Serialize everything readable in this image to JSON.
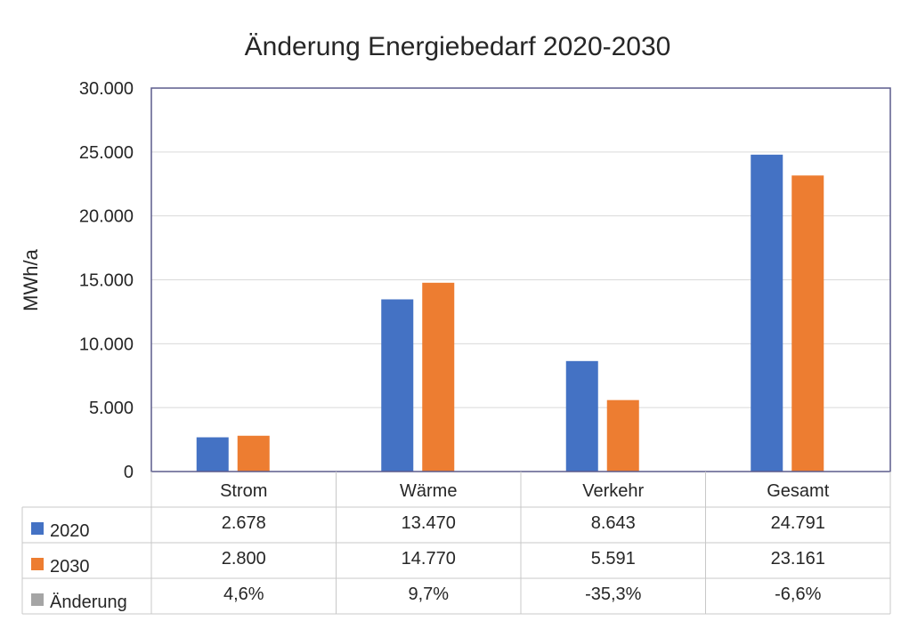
{
  "chart_data": {
    "type": "bar",
    "title": "Änderung Energiebedarf 2020-2030",
    "ylabel": "MWh/a",
    "xlabel": "",
    "ylim": [
      0,
      30000
    ],
    "yticks": [
      0,
      5000,
      10000,
      15000,
      20000,
      25000,
      30000
    ],
    "ytick_labels": [
      "0",
      "5.000",
      "10.000",
      "15.000",
      "20.000",
      "25.000",
      "30.000"
    ],
    "grid": true,
    "legend": "data-table-below",
    "categories": [
      "Strom",
      "Wärme",
      "Verkehr",
      "Gesamt"
    ],
    "series": [
      {
        "name": "2020",
        "color": "#4472C4",
        "values": [
          2678,
          13470,
          8643,
          24791
        ],
        "labels": [
          "2.678",
          "13.470",
          "8.643",
          "24.791"
        ]
      },
      {
        "name": "2030",
        "color": "#ED7D31",
        "values": [
          2800,
          14770,
          5591,
          23161
        ],
        "labels": [
          "2.800",
          "14.770",
          "5.591",
          "23.161"
        ]
      },
      {
        "name": "Änderung",
        "color": "#A5A5A5",
        "values": [
          4.6,
          9.7,
          -35.3,
          -6.6
        ],
        "labels": [
          "4,6%",
          "9,7%",
          "-35,3%",
          "-6,6%"
        ],
        "plotted": false
      }
    ]
  }
}
